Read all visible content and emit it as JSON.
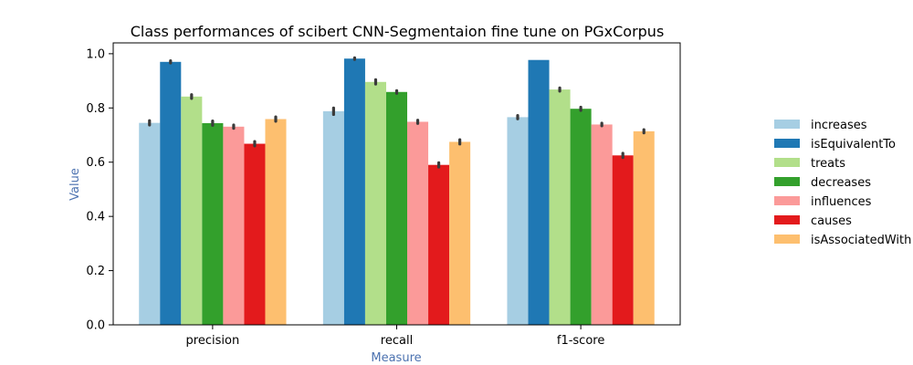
{
  "chart_data": {
    "type": "bar",
    "title": "Class performances of scibert CNN-Segmentaion fine tune on PGxCorpus",
    "xlabel": "Measure",
    "ylabel": "Value",
    "ylim": [
      0,
      1.04
    ],
    "yticks": [
      "0.0",
      "0.2",
      "0.4",
      "0.6",
      "0.8",
      "1.0"
    ],
    "grid": false,
    "legend_position": "right",
    "categories": [
      "precision",
      "recall",
      "f1-score"
    ],
    "series": [
      {
        "name": "increases",
        "color": "#a6cee3",
        "values": [
          0.745,
          0.788,
          0.766
        ],
        "err": [
          0.008,
          0.012,
          0.006
        ]
      },
      {
        "name": "isEquivalentTo",
        "color": "#1f78b4",
        "values": [
          0.97,
          0.982,
          0.977
        ],
        "err": [
          0.004,
          0.003,
          0.0
        ]
      },
      {
        "name": "treats",
        "color": "#b2df8a",
        "values": [
          0.842,
          0.896,
          0.868
        ],
        "err": [
          0.007,
          0.008,
          0.006
        ]
      },
      {
        "name": "decreases",
        "color": "#33a02c",
        "values": [
          0.744,
          0.859,
          0.797
        ],
        "err": [
          0.008,
          0.005,
          0.006
        ]
      },
      {
        "name": "influences",
        "color": "#fb9a99",
        "values": [
          0.731,
          0.749,
          0.739
        ],
        "err": [
          0.006,
          0.006,
          0.005
        ]
      },
      {
        "name": "causes",
        "color": "#e31a1c",
        "values": [
          0.668,
          0.59,
          0.625
        ],
        "err": [
          0.008,
          0.008,
          0.008
        ]
      },
      {
        "name": "isAssociatedWith",
        "color": "#fdbf6f",
        "values": [
          0.759,
          0.675,
          0.714
        ],
        "err": [
          0.008,
          0.008,
          0.006
        ]
      }
    ]
  }
}
